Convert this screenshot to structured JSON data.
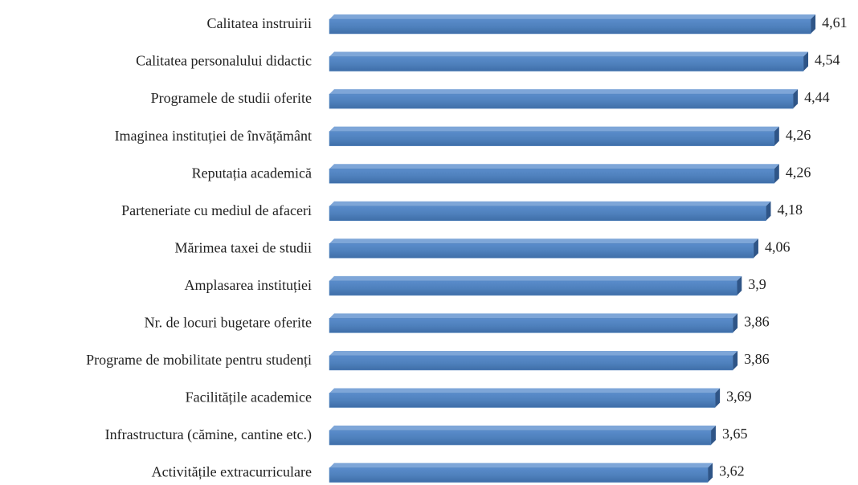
{
  "chart_data": {
    "type": "bar",
    "orientation": "horizontal",
    "color": "#4f81bd",
    "categories": [
      "Calitatea instruirii",
      "Calitatea personalului didactic",
      "Programele de studii oferite",
      "Imaginea instituției de învățământ",
      "Reputația academică",
      "Parteneriate cu mediul de afaceri",
      "Mărimea taxei de studii",
      "Amplasarea instituției",
      "Nr. de locuri bugetare oferite",
      "Programe de mobilitate pentru studenți",
      "Facilitățile academice",
      "Infrastructura (cămine, cantine etc.)",
      "Activitățile extracurriculare"
    ],
    "values": [
      4.61,
      4.54,
      4.44,
      4.26,
      4.26,
      4.18,
      4.06,
      3.9,
      3.86,
      3.86,
      3.69,
      3.65,
      3.62
    ],
    "value_labels": [
      "4,61",
      "4,54",
      "4,44",
      "4,26",
      "4,26",
      "4,18",
      "4,06",
      "3,9",
      "3,86",
      "3,86",
      "3,69",
      "3,65",
      "3,62"
    ]
  }
}
